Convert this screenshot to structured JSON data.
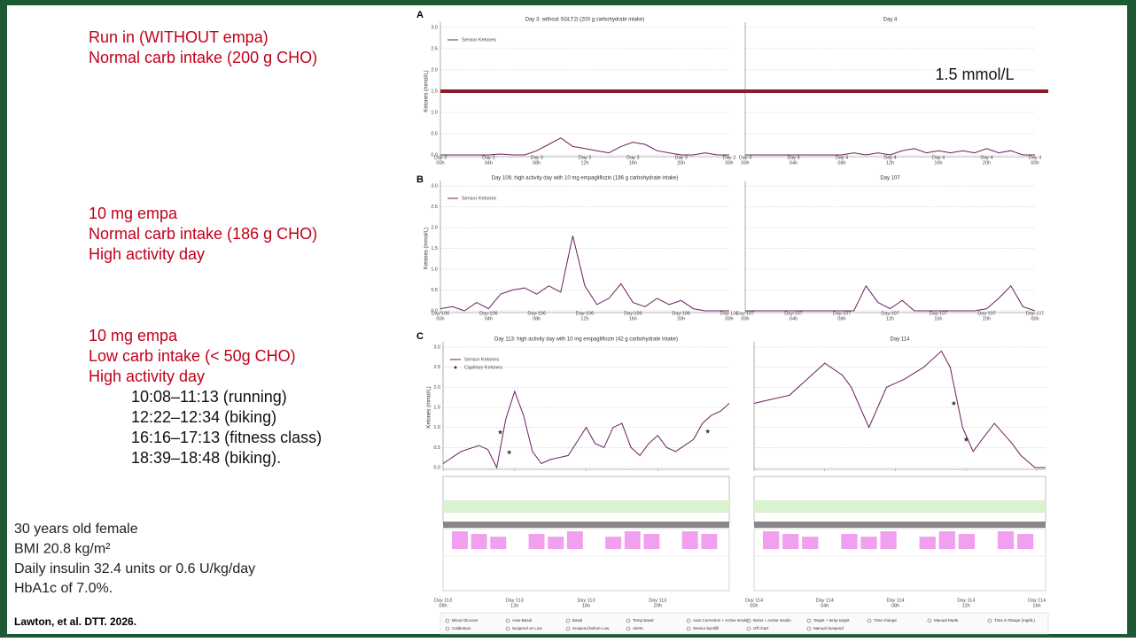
{
  "slide": {
    "blocks": [
      {
        "lines": [
          "Run in (WITHOUT empa)",
          "Normal carb intake (200 g CHO)"
        ]
      },
      {
        "lines": [
          "10 mg empa",
          "Normal carb intake (186 g CHO)",
          "High activity day"
        ]
      },
      {
        "lines": [
          "10 mg empa",
          "Low carb intake (< 50g CHO)",
          "High activity day"
        ],
        "sublines": [
          "10:08–11:13 (running)",
          "12:22–12:34 (biking)",
          "16:16–17:13 (fitness class)",
          "18:39–18:48 (biking)."
        ]
      }
    ],
    "patient": [
      "30 years old female",
      "BMI 20.8 kg/m²",
      "Daily insulin 32.4 units or 0.6 U/kg/day",
      "HbA1c of 7.0%."
    ],
    "citation": "Lawton, et al. DTT. 2026.",
    "threshold": {
      "value": 1.5,
      "label": "1.5 mmol/L",
      "color": "#8b1a2b"
    },
    "figure_legend": [
      "Blood Glucose",
      "Auto-Basal",
      "Basal",
      "Temp Basal",
      "Auto Correction + Active Insulin",
      "Bolus + Active Insulin",
      "Target + temp target",
      "Time change",
      "Manual Mode",
      "Time in Range (mg/dL)",
      "Calibration",
      "Suspend on Low",
      "Suspend before Low",
      "Alerts",
      "Sensor backfill",
      "Off chart",
      "Manual Suspend"
    ]
  },
  "chart_data": [
    {
      "type": "line",
      "panel": "A",
      "title": "Day 3: without SGLT2i (200 g carbohydrate intake)",
      "ylabel": "Ketones (mmol/L)",
      "grid": true,
      "xlim": [
        0,
        24
      ],
      "ylim": [
        0,
        3
      ],
      "xticks": [
        {
          "value": 0,
          "label": [
            "Day 3",
            "00h"
          ]
        },
        {
          "value": 4,
          "label": [
            "Day 3",
            "04h"
          ]
        },
        {
          "value": 8,
          "label": [
            "Day 3",
            "08h"
          ]
        },
        {
          "value": 12,
          "label": [
            "Day 3",
            "12h"
          ]
        },
        {
          "value": 16,
          "label": [
            "Day 3",
            "16h"
          ]
        },
        {
          "value": 20,
          "label": [
            "Day 3",
            "20h"
          ]
        },
        {
          "value": 24,
          "label": [
            "Day 3",
            "00h"
          ]
        }
      ],
      "yticks": [
        {
          "value": 0,
          "label": "0.0"
        },
        {
          "value": 0.5,
          "label": "0.5"
        },
        {
          "value": 1,
          "label": "1.0"
        },
        {
          "value": 1.5,
          "label": "1.5"
        },
        {
          "value": 2,
          "label": "2.0"
        },
        {
          "value": 2.5,
          "label": "2.5"
        },
        {
          "value": 3,
          "label": "3.0"
        }
      ],
      "series": [
        {
          "name": "Sensor Ketones",
          "color": "#6b1e5e",
          "x": [
            0,
            1,
            2,
            3,
            4,
            5,
            6,
            7,
            8,
            9,
            10,
            11,
            12,
            13,
            14,
            15,
            16,
            17,
            18,
            19,
            20,
            21,
            22,
            23,
            24
          ],
          "values": [
            0,
            0,
            0,
            0,
            0,
            0.02,
            0,
            0,
            0.1,
            0.25,
            0.4,
            0.2,
            0.15,
            0.1,
            0.05,
            0.2,
            0.3,
            0.25,
            0.1,
            0.05,
            0,
            0,
            0.05,
            0,
            0
          ]
        }
      ]
    },
    {
      "type": "line",
      "title": "Day 4",
      "grid": true,
      "xlim": [
        0,
        24
      ],
      "ylim": [
        0,
        3
      ],
      "xticks": [
        {
          "value": 0,
          "label": [
            "Day 4",
            "00h"
          ]
        },
        {
          "value": 4,
          "label": [
            "Day 4",
            "04h"
          ]
        },
        {
          "value": 8,
          "label": [
            "Day 4",
            "08h"
          ]
        },
        {
          "value": 12,
          "label": [
            "Day 4",
            "12h"
          ]
        },
        {
          "value": 16,
          "label": [
            "Day 4",
            "16h"
          ]
        },
        {
          "value": 20,
          "label": [
            "Day 4",
            "20h"
          ]
        },
        {
          "value": 24,
          "label": [
            "Day 4",
            "00h"
          ]
        }
      ],
      "series": [
        {
          "color": "#6b1e5e",
          "x": [
            0,
            1,
            2,
            3,
            4,
            5,
            6,
            7,
            8,
            9,
            10,
            11,
            12,
            13,
            14,
            15,
            16,
            17,
            18,
            19,
            20,
            21,
            22,
            23,
            24
          ],
          "values": [
            0,
            0,
            0,
            0,
            0,
            0,
            0,
            0,
            0,
            0.05,
            0,
            0.05,
            0,
            0.1,
            0.15,
            0.05,
            0.1,
            0.05,
            0.1,
            0.05,
            0.15,
            0.05,
            0.1,
            0,
            0
          ]
        }
      ]
    },
    {
      "type": "line",
      "panel": "B",
      "title": "Day 106: high activity day with 10 mg empagliflozin (186 g carbohydrate intake)",
      "ylabel": "Ketones (mmol/L)",
      "grid": true,
      "xlim": [
        0,
        24
      ],
      "ylim": [
        0,
        3
      ],
      "xticks": [
        {
          "value": 0,
          "label": [
            "Day 106",
            "00h"
          ]
        },
        {
          "value": 4,
          "label": [
            "Day 106",
            "04h"
          ]
        },
        {
          "value": 8,
          "label": [
            "Day 106",
            "08h"
          ]
        },
        {
          "value": 12,
          "label": [
            "Day 106",
            "12h"
          ]
        },
        {
          "value": 16,
          "label": [
            "Day 106",
            "16h"
          ]
        },
        {
          "value": 20,
          "label": [
            "Day 106",
            "20h"
          ]
        },
        {
          "value": 24,
          "label": [
            "Day 106",
            "00h"
          ]
        }
      ],
      "yticks": [
        {
          "value": 0,
          "label": "0.0"
        },
        {
          "value": 0.5,
          "label": "0.5"
        },
        {
          "value": 1,
          "label": "1.0"
        },
        {
          "value": 1.5,
          "label": "1.5"
        },
        {
          "value": 2,
          "label": "2.0"
        },
        {
          "value": 2.5,
          "label": "2.5"
        },
        {
          "value": 3,
          "label": "3.0"
        }
      ],
      "series": [
        {
          "name": "Sensor Ketones",
          "color": "#6b1e5e",
          "x": [
            0,
            1,
            2,
            3,
            4,
            5,
            6,
            7,
            8,
            9,
            10,
            11,
            12,
            13,
            14,
            15,
            16,
            17,
            18,
            19,
            20,
            21,
            22,
            23,
            24
          ],
          "values": [
            0.05,
            0.1,
            0,
            0.2,
            0.05,
            0.4,
            0.5,
            0.55,
            0.4,
            0.6,
            0.45,
            1.8,
            0.6,
            0.15,
            0.3,
            0.65,
            0.2,
            0.1,
            0.3,
            0.15,
            0.25,
            0.05,
            0,
            0,
            0
          ]
        }
      ]
    },
    {
      "type": "line",
      "title": "Day 107",
      "grid": true,
      "xlim": [
        0,
        24
      ],
      "ylim": [
        0,
        3
      ],
      "xticks": [
        {
          "value": 0,
          "label": [
            "Day 107",
            "00h"
          ]
        },
        {
          "value": 4,
          "label": [
            "Day 107",
            "04h"
          ]
        },
        {
          "value": 8,
          "label": [
            "Day 107",
            "08h"
          ]
        },
        {
          "value": 12,
          "label": [
            "Day 107",
            "12h"
          ]
        },
        {
          "value": 16,
          "label": [
            "Day 107",
            "16h"
          ]
        },
        {
          "value": 20,
          "label": [
            "Day 107",
            "20h"
          ]
        },
        {
          "value": 24,
          "label": [
            "Day 107",
            "00h"
          ]
        }
      ],
      "series": [
        {
          "color": "#6b1e5e",
          "x": [
            0,
            1,
            2,
            3,
            4,
            5,
            6,
            7,
            8,
            9,
            10,
            11,
            12,
            13,
            14,
            15,
            16,
            17,
            18,
            19,
            20,
            21,
            22,
            23,
            24
          ],
          "values": [
            0,
            0,
            0,
            0,
            0,
            0,
            0,
            0,
            0,
            0,
            0.6,
            0.2,
            0.05,
            0.25,
            0,
            0,
            0,
            0,
            0,
            0,
            0.05,
            0.3,
            0.6,
            0.1,
            0
          ]
        }
      ]
    },
    {
      "type": "line",
      "panel": "C",
      "title": "Day 113: high activity day with 10 mg empagliflozin (42 g carbohydrate intake)",
      "ylabel": "Ketones (mmol/L)",
      "grid": true,
      "xlim": [
        8,
        24
      ],
      "ylim": [
        0,
        3
      ],
      "xticks": [
        {
          "value": 8,
          "label": [
            "Day 113",
            "08h"
          ]
        },
        {
          "value": 12,
          "label": [
            "Day 113",
            "12h"
          ]
        },
        {
          "value": 16,
          "label": [
            "Day 113",
            "16h"
          ]
        },
        {
          "value": 20,
          "label": [
            "Day 113",
            "20h"
          ]
        }
      ],
      "yticks": [
        {
          "value": 0,
          "label": "0.0"
        },
        {
          "value": 0.5,
          "label": "0.5"
        },
        {
          "value": 1,
          "label": "1.0"
        },
        {
          "value": 1.5,
          "label": "1.5"
        },
        {
          "value": 2,
          "label": "2.0"
        },
        {
          "value": 2.5,
          "label": "2.5"
        },
        {
          "value": 3,
          "label": "3.0"
        }
      ],
      "series": [
        {
          "name": "Sensor Ketones",
          "color": "#6b1e5e",
          "x": [
            8,
            9,
            10,
            10.5,
            11,
            11.5,
            12,
            12.5,
            13,
            13.5,
            14,
            15,
            16,
            16.5,
            17,
            17.5,
            18,
            18.5,
            19,
            19.5,
            20,
            20.5,
            21,
            22,
            22.5,
            23,
            23.5,
            24
          ],
          "values": [
            0.1,
            0.4,
            0.55,
            0.45,
            0,
            1.2,
            1.9,
            1.3,
            0.4,
            0.1,
            0.2,
            0.3,
            1,
            0.6,
            0.5,
            1,
            1.1,
            0.5,
            0.3,
            0.6,
            0.8,
            0.5,
            0.4,
            0.7,
            1.1,
            1.3,
            1.4,
            1.6
          ]
        },
        {
          "name": "Capillary Ketones",
          "color": "#333333",
          "marker": "star",
          "x": [
            11.2,
            11.7,
            22.8
          ],
          "values": [
            0.88,
            0.38,
            0.9
          ]
        }
      ]
    },
    {
      "type": "line",
      "title": "Day 114",
      "grid": true,
      "xlim": [
        0,
        16.5
      ],
      "ylim": [
        0,
        3
      ],
      "xticks": [
        {
          "value": 0,
          "label": [
            "Day 114",
            "00h"
          ]
        },
        {
          "value": 4,
          "label": [
            "Day 114",
            "04h"
          ]
        },
        {
          "value": 8,
          "label": [
            "Day 114",
            "08h"
          ]
        },
        {
          "value": 12,
          "label": [
            "Day 114",
            "12h"
          ]
        },
        {
          "value": 16,
          "label": [
            "Day 114",
            "16h"
          ]
        }
      ],
      "series": [
        {
          "color": "#6b1e5e",
          "x": [
            0,
            1,
            2,
            3,
            4,
            5,
            5.5,
            6.5,
            7.5,
            8.5,
            9.6,
            10.6,
            11.1,
            11.8,
            12.4,
            12.9,
            13.6,
            14.6,
            15.1,
            15.9,
            16.5
          ],
          "values": [
            1.6,
            1.7,
            1.8,
            2.2,
            2.6,
            2.3,
            2,
            1,
            2,
            2.2,
            2.5,
            2.9,
            2.5,
            1,
            0.4,
            0.7,
            1.1,
            0.6,
            0.3,
            0,
            0
          ]
        },
        {
          "color": "#333333",
          "marker": "star",
          "x": [
            11.3,
            12
          ],
          "values": [
            1.6,
            0.7
          ]
        }
      ]
    }
  ]
}
